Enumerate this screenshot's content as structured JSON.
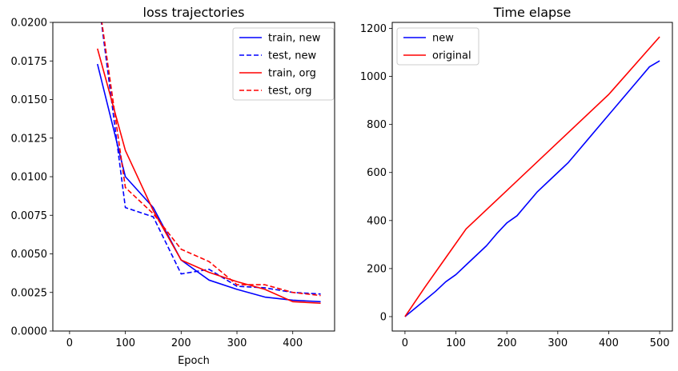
{
  "chart_data": [
    {
      "type": "line",
      "title": "loss trajectories",
      "xlabel": "Epoch",
      "ylabel": "",
      "xlim": [
        -30,
        475
      ],
      "ylim": [
        0,
        0.02
      ],
      "xticks": [
        0,
        100,
        200,
        300,
        400
      ],
      "yticks": [
        0,
        0.0025,
        0.005,
        0.0075,
        0.01,
        0.0125,
        0.015,
        0.0175,
        0.02
      ],
      "ytick_labels": [
        "0.0000",
        "0.0025",
        "0.0050",
        "0.0075",
        "0.0100",
        "0.0125",
        "0.0150",
        "0.0175",
        "0.0200"
      ],
      "grid": false,
      "legend": "top-right",
      "series": [
        {
          "name": "train, new",
          "color": "#0000ff",
          "style": "solid",
          "x": [
            50,
            100,
            150,
            200,
            250,
            300,
            350,
            400,
            450
          ],
          "y": [
            0.0173,
            0.01,
            0.008,
            0.0046,
            0.0033,
            0.0027,
            0.0022,
            0.002,
            0.0019
          ]
        },
        {
          "name": "test, new",
          "color": "#0000ff",
          "style": "dashed",
          "x": [
            50,
            100,
            150,
            200,
            250,
            300,
            350,
            400,
            450
          ],
          "y": [
            0.022,
            0.008,
            0.0074,
            0.0037,
            0.004,
            0.0029,
            0.0028,
            0.0025,
            0.0024
          ]
        },
        {
          "name": "train, org",
          "color": "#ff0000",
          "style": "solid",
          "x": [
            50,
            100,
            150,
            200,
            250,
            300,
            350,
            400,
            450
          ],
          "y": [
            0.0183,
            0.0117,
            0.0078,
            0.0046,
            0.0038,
            0.0032,
            0.0027,
            0.0019,
            0.0018
          ]
        },
        {
          "name": "test, org",
          "color": "#ff0000",
          "style": "dashed",
          "x": [
            50,
            100,
            150,
            200,
            250,
            300,
            350,
            400,
            450
          ],
          "y": [
            0.022,
            0.0093,
            0.0076,
            0.0053,
            0.0045,
            0.003,
            0.003,
            0.0025,
            0.0023
          ]
        }
      ]
    },
    {
      "type": "line",
      "title": "Time elapse",
      "xlabel": "",
      "ylabel": "",
      "xlim": [
        -25,
        525
      ],
      "ylim": [
        -60,
        1225
      ],
      "xticks": [
        0,
        100,
        200,
        300,
        400,
        500
      ],
      "yticks": [
        0,
        200,
        400,
        600,
        800,
        1000,
        1200
      ],
      "grid": false,
      "legend": "top-left",
      "series": [
        {
          "name": "new",
          "color": "#0000ff",
          "style": "solid",
          "x": [
            0,
            20,
            40,
            60,
            80,
            100,
            120,
            140,
            160,
            180,
            200,
            220,
            240,
            260,
            280,
            300,
            320,
            340,
            360,
            380,
            400,
            420,
            440,
            460,
            480,
            500
          ],
          "y": [
            0,
            35,
            70,
            105,
            145,
            175,
            215,
            255,
            295,
            345,
            390,
            420,
            470,
            520,
            560,
            600,
            640,
            690,
            740,
            790,
            840,
            890,
            940,
            990,
            1040,
            1065
          ]
        },
        {
          "name": "original",
          "color": "#ff0000",
          "style": "solid",
          "x": [
            0,
            40,
            80,
            120,
            200,
            300,
            400,
            500
          ],
          "y": [
            0,
            125,
            245,
            365,
            525,
            725,
            925,
            1165
          ]
        }
      ]
    }
  ]
}
